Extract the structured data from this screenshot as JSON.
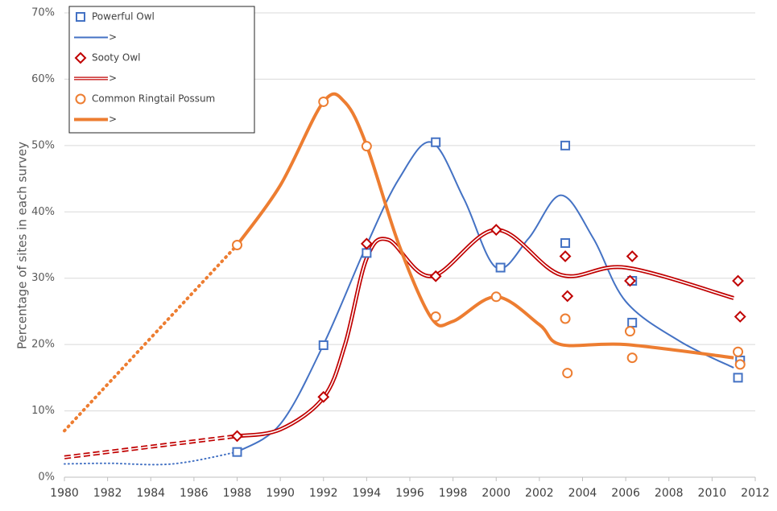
{
  "chart_data": {
    "type": "scatter",
    "y_label": "Percentage of sites in each survey",
    "xlim": [
      1980,
      2012
    ],
    "xticks": [
      1980,
      1982,
      1984,
      1986,
      1988,
      1990,
      1992,
      1994,
      1996,
      1998,
      2000,
      2002,
      2004,
      2006,
      2008,
      2010,
      2012
    ],
    "ylim": [
      0,
      70
    ],
    "yticks": [
      {
        "value": 0,
        "label": "0%"
      },
      {
        "value": 10,
        "label": "10%"
      },
      {
        "value": 20,
        "label": "20%"
      },
      {
        "value": 30,
        "label": "30%"
      },
      {
        "value": 40,
        "label": "40%"
      },
      {
        "value": 50,
        "label": "50%"
      },
      {
        "value": 60,
        "label": "60%"
      },
      {
        "value": 70,
        "label": "70%"
      }
    ],
    "grid": true,
    "legend": "upper left",
    "series": [
      {
        "name": "Powerful Owl",
        "color": "#4472c4",
        "kind": "points",
        "marker": "square",
        "x": [
          1988,
          1992,
          1994,
          1997.2,
          2000.2,
          2003.2,
          2003.2,
          2006.3,
          2006.3,
          2011.3,
          2011.2
        ],
        "values": [
          3.8,
          19.9,
          33.8,
          50.5,
          31.6,
          50,
          35.3,
          29.6,
          23.3,
          17.6,
          15.0
        ]
      },
      {
        "name": ">",
        "color": "#4472c4",
        "kind": "trend",
        "style": "solid",
        "width": 2,
        "x": [
          1988,
          1990,
          1992,
          1994,
          1995.5,
          1997,
          1998.5,
          2000,
          2001.5,
          2003,
          2004.5,
          2006,
          2008.5,
          2011
        ],
        "values": [
          3.8,
          8,
          20,
          35,
          45,
          50.5,
          42,
          31.6,
          36,
          42.5,
          36,
          26.5,
          20.5,
          16.5
        ]
      },
      {
        "name": "Sooty Owl",
        "color": "#c00000",
        "kind": "points",
        "marker": "diamond",
        "x": [
          1988,
          1992,
          1994,
          1997.2,
          2000,
          2003.2,
          2003.3,
          2006.3,
          2006.2,
          2011.2,
          2011.3
        ],
        "values": [
          6.2,
          12.1,
          35.2,
          30.3,
          37.3,
          33.3,
          27.3,
          33.3,
          29.6,
          29.6,
          24.2
        ]
      },
      {
        "name": ">",
        "color": "#c00000",
        "kind": "trend",
        "style": "double",
        "width": 5,
        "x": [
          1988,
          1990,
          1992,
          1993,
          1994,
          1995,
          1997,
          2000,
          2003,
          2006,
          2011
        ],
        "values": [
          6.2,
          7.2,
          12,
          20,
          33,
          35.8,
          30.3,
          37.3,
          30.5,
          31.6,
          27
        ]
      },
      {
        "name": "Common Ringtail Possum",
        "color": "#ed7d31",
        "kind": "points",
        "marker": "circle",
        "x": [
          1988,
          1992,
          1994,
          1997.2,
          2000,
          2003.2,
          2003.3,
          2006.2,
          2006.3,
          2011.2,
          2011.3
        ],
        "values": [
          35.0,
          56.6,
          49.9,
          24.2,
          27.2,
          23.9,
          15.7,
          22.0,
          18.0,
          18.9,
          17.0
        ]
      },
      {
        "name": ">",
        "color": "#ed7d31",
        "kind": "trend",
        "style": "solid",
        "width": 4,
        "x": [
          1988,
          1990,
          1992,
          1993,
          1994,
          1995.5,
          1997,
          1998,
          2000,
          2002,
          2003,
          2006,
          2011
        ],
        "values": [
          35,
          44,
          56.6,
          56.5,
          50,
          35,
          24,
          23.5,
          27.2,
          23,
          20,
          20,
          18
        ]
      },
      {
        "color": "#4472c4",
        "kind": "trend",
        "style": "dotted",
        "width": 2,
        "x": [
          1980,
          1982,
          1985,
          1988
        ],
        "values": [
          2.0,
          2.1,
          2.0,
          3.8
        ]
      },
      {
        "color": "#c00000",
        "kind": "trend",
        "style": "dashed-double",
        "width": 5,
        "x": [
          1980,
          1988
        ],
        "values": [
          3.0,
          6.2
        ]
      },
      {
        "color": "#ed7d31",
        "kind": "trend",
        "style": "dotted",
        "width": 4,
        "x": [
          1980,
          1988
        ],
        "values": [
          7,
          35
        ]
      }
    ]
  }
}
